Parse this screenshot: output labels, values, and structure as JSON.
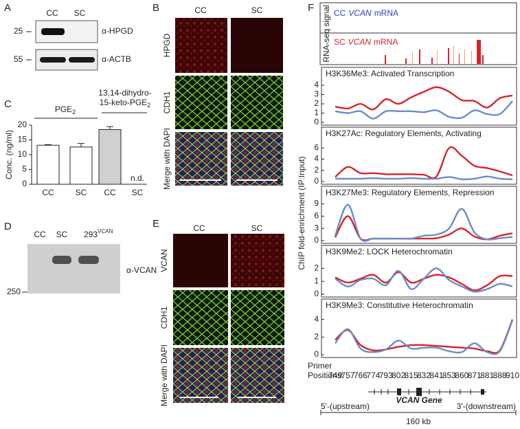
{
  "panel_labels": [
    "A",
    "B",
    "C",
    "D",
    "E",
    "F"
  ],
  "panel_a": {
    "lanes": [
      "CC",
      "SC"
    ],
    "rows": [
      {
        "marker": "25",
        "label": "α-HPGD"
      },
      {
        "marker": "55",
        "label": "α-ACTB"
      }
    ]
  },
  "panel_b": {
    "columns": [
      "CC",
      "SC"
    ],
    "rows": [
      "HPGD",
      "CDH1",
      "Merge with DAPI"
    ]
  },
  "panel_c": {
    "groups": [
      {
        "text": "PGE",
        "sub": "2"
      },
      {
        "line1": "13,14-dihydro-",
        "text": "15-keto-PGE",
        "sub": "2"
      }
    ],
    "not_detected": "n.d."
  },
  "panel_d": {
    "lanes": [
      "CC",
      "SC",
      "293"
    ],
    "lane_superscript": "VCAN",
    "label": "α-VCAN",
    "marker": "250"
  },
  "panel_e": {
    "columns": [
      "CC",
      "SC"
    ],
    "rows": [
      "VCAN",
      "CDH1",
      "Merge with DAPI"
    ]
  },
  "panel_f": {
    "track_label": "RNA-seq signal",
    "legend": [
      {
        "prefix": "CC",
        "gene": "VCAN",
        "suffix": "mRNA",
        "color": "#2b3fc7"
      },
      {
        "prefix": "SC",
        "gene": "VCAN",
        "suffix": "mRNA",
        "color": "#d8232a"
      }
    ],
    "y_label": "ChIP fold-enrichment (IP:Input)",
    "x_label": [
      "Primer",
      "Positions:"
    ],
    "gene": "VCAN Gene",
    "upstream": "5'-(upstream)",
    "downstream": "3'-(downstream)",
    "scale": "160 kb"
  },
  "chart_data": [
    {
      "type": "bar",
      "y_label": "Conc. (ng/ml)",
      "categories": [
        "CC",
        "SC",
        "CC",
        "SC"
      ],
      "values": [
        13.2,
        12.6,
        18.5,
        null
      ],
      "errors": [
        0.2,
        1.2,
        1.0,
        null
      ],
      "colors": [
        "#ffffff",
        "#ffffff",
        "#d0d0d0",
        "#ffffff"
      ],
      "ylim": [
        0,
        20
      ],
      "yticks": [
        0,
        5,
        10,
        15,
        20
      ]
    },
    {
      "type": "line",
      "title": "H3K36Me3: Activated Transcription",
      "ylim": [
        0,
        4.3
      ],
      "yticks": [
        0,
        1,
        2,
        3,
        4
      ],
      "series": [
        {
          "color": "#d8232a",
          "values": [
            1.7,
            1.5,
            2.0,
            1.4,
            2.5,
            2.0,
            2.7,
            3.3,
            3.8,
            3.3,
            2.4,
            2.3,
            1.6,
            2.6,
            2.9
          ]
        },
        {
          "color": "#6a8cc8",
          "values": [
            1.2,
            1.0,
            1.2,
            0.4,
            1.2,
            1.2,
            1.2,
            1.1,
            1.3,
            0.6,
            0.5,
            1.3,
            0.9,
            0.9,
            2.3
          ]
        }
      ]
    },
    {
      "type": "line",
      "title": "H3K27Ac: Regulatory Elements, Activating",
      "ylim": [
        0,
        7
      ],
      "yticks": [
        0,
        2,
        4,
        6
      ],
      "series": [
        {
          "color": "#d8232a",
          "values": [
            0.8,
            2.6,
            1.5,
            1.5,
            1.3,
            1.3,
            1.3,
            1.2,
            0.9,
            6.0,
            4.6,
            2.8,
            2.4,
            1.8,
            1.1
          ]
        },
        {
          "color": "#6a8cc8",
          "values": [
            0.5,
            0.5,
            0.5,
            0.6,
            0.5,
            0.5,
            0.6,
            0.5,
            0.5,
            0.8,
            0.4,
            0.5,
            0.9,
            0.5,
            0.4
          ]
        }
      ]
    },
    {
      "type": "line",
      "title": "H3K27Me3: Regulatory Elements, Repression",
      "ylim": [
        0,
        9.6
      ],
      "yticks": [
        0,
        3,
        6,
        9
      ],
      "series": [
        {
          "color": "#d8232a",
          "values": [
            0.8,
            6.0,
            0.5,
            0.5,
            0.5,
            0.5,
            0.5,
            0.5,
            0.6,
            1.5,
            3.0,
            1.0,
            0.3,
            1.2,
            1.8
          ]
        },
        {
          "color": "#6a8cc8",
          "values": [
            1.2,
            8.8,
            0.5,
            0.5,
            0.5,
            0.5,
            0.5,
            1.2,
            1.5,
            3.0,
            7.8,
            2.0,
            0.3,
            0.6,
            0.9
          ]
        }
      ]
    },
    {
      "type": "line",
      "title": "H3K9Me2: LOCK Heterochromatin",
      "ylim": [
        0,
        2.6
      ],
      "yticks": [
        0,
        1,
        2
      ],
      "series": [
        {
          "color": "#d8232a",
          "values": [
            1.3,
            0.9,
            1.2,
            1.5,
            0.9,
            1.7,
            0.9,
            1.2,
            1.5,
            1.3,
            0.8,
            0.3,
            0.7,
            1.4,
            1.4
          ]
        },
        {
          "color": "#6a8cc8",
          "values": [
            1.2,
            0.6,
            1.1,
            1.2,
            0.7,
            1.8,
            0.4,
            1.2,
            2.0,
            1.1,
            0.6,
            0.2,
            0.4,
            0.8,
            0.6
          ]
        }
      ]
    },
    {
      "type": "line",
      "title": "H3K9Me3: Constitutive Heterochromatin",
      "ylim": [
        0,
        4.6
      ],
      "yticks": [
        0,
        2,
        4
      ],
      "categories": [
        "749",
        "757",
        "766",
        "774",
        "793",
        "802",
        "815",
        "832",
        "841",
        "853",
        "860",
        "871",
        "881",
        "888",
        "910"
      ],
      "series": [
        {
          "color": "#d8232a",
          "values": [
            1.7,
            2.8,
            1.1,
            0.5,
            0.6,
            0.9,
            1.1,
            1.1,
            1.0,
            0.9,
            0.8,
            0.7,
            0.4,
            0.5,
            4.0
          ]
        },
        {
          "color": "#6a8cc8",
          "values": [
            1.3,
            2.9,
            0.7,
            0.3,
            0.6,
            1.6,
            0.7,
            0.8,
            0.8,
            0.4,
            0.3,
            1.3,
            0.3,
            0.4,
            3.9
          ]
        }
      ]
    }
  ]
}
